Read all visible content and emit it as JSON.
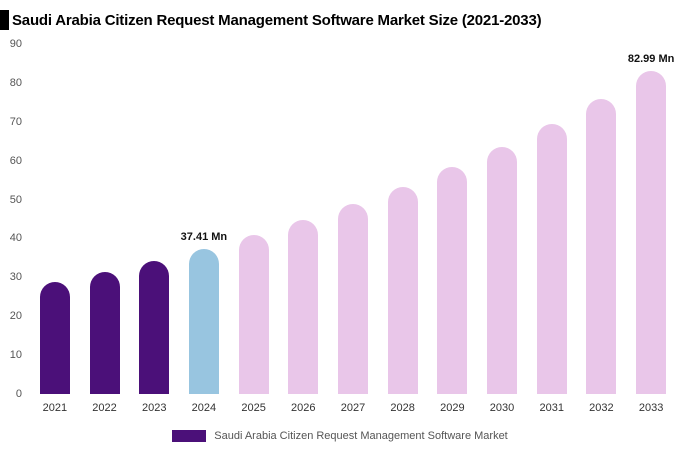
{
  "title": "Saudi Arabia Citizen Request Management Software Market Size (2021-2033)",
  "legend": {
    "label": "Saudi Arabia Citizen Request Management Software Market",
    "swatch_color": "#4b1079"
  },
  "chart_data": {
    "type": "bar",
    "title": "Saudi Arabia Citizen Request Management Software Market Size (2021-2033)",
    "categories": [
      "2021",
      "2022",
      "2023",
      "2024",
      "2025",
      "2026",
      "2027",
      "2028",
      "2029",
      "2030",
      "2031",
      "2032",
      "2033"
    ],
    "values": [
      28.68,
      31.34,
      34.24,
      37.41,
      40.87,
      44.66,
      48.79,
      53.31,
      58.25,
      63.64,
      69.53,
      75.97,
      82.99
    ],
    "unit": "Mn",
    "xlabel": "",
    "ylabel": "",
    "ylim": [
      0,
      90
    ],
    "yticks": [
      0,
      10,
      20,
      30,
      40,
      50,
      60,
      70,
      80,
      90
    ],
    "grid": false,
    "legend_position": "bottom",
    "bar_colors": [
      "#4b1079",
      "#4b1079",
      "#4b1079",
      "#98c5e0",
      "#e9c6e9",
      "#e9c6e9",
      "#e9c6e9",
      "#e9c6e9",
      "#e9c6e9",
      "#e9c6e9",
      "#e9c6e9",
      "#e9c6e9",
      "#e9c6e9"
    ],
    "annotations": [
      {
        "index": 3,
        "text": "37.41 Mn"
      },
      {
        "index": 12,
        "text": "82.99 Mn"
      }
    ]
  }
}
